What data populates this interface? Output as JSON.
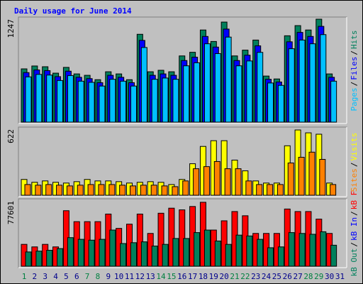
{
  "title": "Daily usage for June 2014",
  "legend_separator": "/",
  "categories": [
    "1",
    "2",
    "3",
    "4",
    "5",
    "6",
    "7",
    "8",
    "9",
    "10",
    "11",
    "12",
    "13",
    "14",
    "15",
    "16",
    "17",
    "18",
    "19",
    "20",
    "21",
    "22",
    "23",
    "24",
    "25",
    "26",
    "27",
    "28",
    "29",
    "30",
    "31"
  ],
  "category_colors": [
    "#008040",
    "#00008b",
    "#00008b",
    "#00008b",
    "#00008b",
    "#00008b",
    "#008040",
    "#008040",
    "#00008b",
    "#00008b",
    "#00008b",
    "#00008b",
    "#00008b",
    "#008040",
    "#008040",
    "#00008b",
    "#00008b",
    "#00008b",
    "#00008b",
    "#00008b",
    "#008040",
    "#008040",
    "#00008b",
    "#00008b",
    "#00008b",
    "#00008b",
    "#00008b",
    "#008040",
    "#008040",
    "#00008b",
    "#00008b"
  ],
  "chart_data": [
    {
      "type": "bar",
      "ylim": [
        0,
        1247
      ],
      "yticks": [
        1247
      ],
      "series": [
        {
          "name": "Hits",
          "color": "#00805c",
          "values": [
            645,
            680,
            671,
            593,
            663,
            584,
            567,
            514,
            610,
            584,
            514,
            1064,
            610,
            628,
            610,
            802,
            846,
            1116,
            977,
            1212,
            802,
            872,
            994,
            558,
            523,
            1046,
            1169,
            1116,
            1247,
            584,
            0
          ]
        },
        {
          "name": "Files",
          "color": "#0000ff",
          "values": [
            600,
            632,
            624,
            551,
            617,
            543,
            527,
            478,
            567,
            543,
            478,
            990,
            567,
            584,
            567,
            746,
            787,
            1038,
            909,
            1127,
            746,
            811,
            924,
            519,
            486,
            973,
            1087,
            1038,
            1160,
            543,
            0
          ]
        },
        {
          "name": "Pages",
          "color": "#00c0ff",
          "values": [
            548,
            578,
            570,
            504,
            564,
            496,
            482,
            437,
            519,
            496,
            437,
            904,
            519,
            534,
            519,
            682,
            719,
            949,
            830,
            1030,
            682,
            741,
            845,
            474,
            445,
            889,
            994,
            949,
            1060,
            496,
            0
          ]
        }
      ]
    },
    {
      "type": "bar",
      "ylim": [
        0,
        622
      ],
      "yticks": [
        622
      ],
      "series": [
        {
          "name": "Visits",
          "color": "#ffff00",
          "values": [
            149,
            122,
            135,
            122,
            115,
            128,
            149,
            135,
            135,
            128,
            115,
            122,
            128,
            122,
            101,
            149,
            297,
            460,
            514,
            514,
            331,
            230,
            135,
            115,
            115,
            466,
            615,
            588,
            575,
            115,
            0
          ]
        },
        {
          "name": "Sites",
          "color": "#ff8000",
          "values": [
            101,
            95,
            101,
            95,
            88,
            95,
            101,
            101,
            101,
            95,
            88,
            95,
            95,
            88,
            81,
            135,
            250,
            270,
            318,
            250,
            250,
            135,
            101,
            101,
            101,
            304,
            358,
            406,
            338,
            101,
            0
          ]
        }
      ]
    },
    {
      "type": "bar",
      "ylim": [
        0,
        77601
      ],
      "yticks": [
        77601
      ],
      "series": [
        {
          "name": "kB F",
          "color": "#ff0000",
          "values": [
            26000,
            23000,
            26000,
            23000,
            66000,
            53000,
            53000,
            53000,
            62000,
            45000,
            50000,
            62000,
            39000,
            63000,
            69000,
            67000,
            71000,
            76000,
            43000,
            54000,
            65000,
            60000,
            39000,
            39000,
            39000,
            68000,
            65000,
            65000,
            56000,
            39000,
            0
          ]
        },
        {
          "name": "kB In",
          "color": "#0000ff",
          "values": [
            0,
            0,
            0,
            0,
            0,
            0,
            0,
            0,
            0,
            0,
            0,
            0,
            0,
            0,
            0,
            0,
            0,
            0,
            0,
            0,
            0,
            0,
            0,
            0,
            0,
            0,
            0,
            0,
            0,
            0,
            0
          ]
        },
        {
          "name": "kB Out",
          "color": "#00805c",
          "values": [
            17000,
            18000,
            19000,
            21000,
            34000,
            32000,
            31000,
            32000,
            43000,
            27000,
            28000,
            29000,
            24000,
            26000,
            33000,
            33000,
            40000,
            43000,
            30000,
            26000,
            37000,
            36000,
            32000,
            22000,
            23000,
            40000,
            39000,
            38000,
            41000,
            25000,
            0
          ]
        }
      ]
    }
  ]
}
